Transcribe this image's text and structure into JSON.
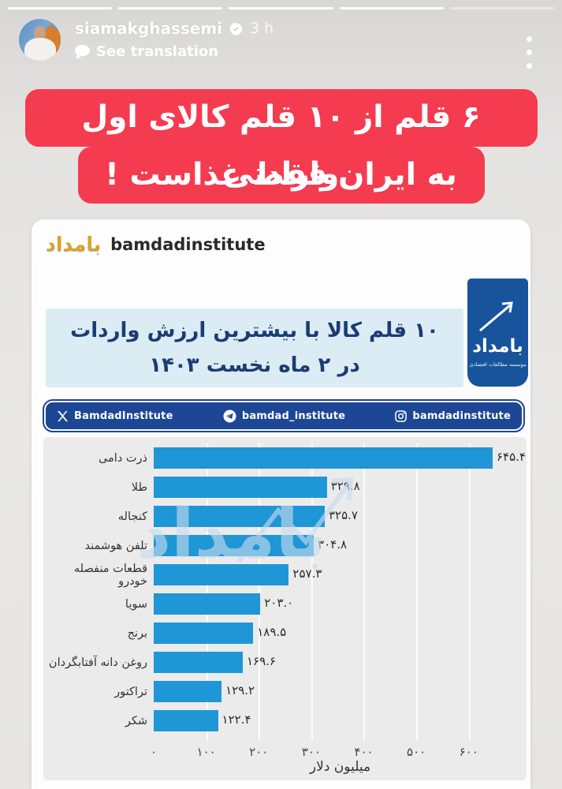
{
  "story": {
    "progress_segments": 5,
    "progress_filled": 4,
    "username": "siamakghassemi",
    "timestamp": "3 h",
    "see_translation_label": "See translation"
  },
  "banner": {
    "line1": "۶ قلم از ۱۰ قلم کالای اول وارادتی",
    "line2": "به ایران فقط غذاست !"
  },
  "card": {
    "logo_text": "بامداد",
    "account_name": "bamdadinstitute",
    "title_line1": "۱۰ قلم کالا با بیشترین ارزش واردات",
    "title_line2": "در ۲ ماه نخست ۱۴۰۳",
    "logo_block": {
      "text": "بامداد",
      "caption": "موسسه مطالعات اقتصادی"
    },
    "social": {
      "twitter": "BamdadInstitute",
      "telegram": "bamdad_institute",
      "instagram": "bamdadinstitute"
    },
    "watermark_text": "بامداد"
  },
  "chart_data": {
    "type": "bar",
    "orientation": "horizontal",
    "title": "۱۰ قلم کالا با بیشترین ارزش واردات در ۲ ماه نخست ۱۴۰۳",
    "categories": [
      "ذرت دامی",
      "طلا",
      "کنجاله",
      "تلفن هوشمند",
      "قطعات منفصله خودرو",
      "سویا",
      "برنج",
      "روغن دانه آفتابگردان",
      "تراکتور",
      "شکر"
    ],
    "values": [
      645.4,
      329.8,
      325.7,
      304.8,
      257.3,
      203.0,
      189.5,
      169.6,
      129.2,
      122.4
    ],
    "value_labels": [
      "۶۴۵.۴",
      "۳۲۹.۸",
      "۳۲۵.۷",
      "۳۰۴.۸",
      "۲۵۷.۳",
      "۲۰۳.۰",
      "۱۸۹.۵",
      "۱۶۹.۶",
      "۱۲۹.۲",
      "۱۲۲.۴"
    ],
    "xlabel": "میلیون دلار",
    "x_ticks": [
      "۰",
      "۱۰۰",
      "۲۰۰",
      "۳۰۰",
      "۴۰۰",
      "۵۰۰",
      "۶۰۰"
    ],
    "x_tick_values": [
      0,
      100,
      200,
      300,
      400,
      500,
      600
    ],
    "xlim": [
      0,
      710
    ],
    "grid": true,
    "legend": false,
    "bar_color": "#1f96d5"
  },
  "colors": {
    "banner_red": "#f43b50",
    "bar_blue": "#1f96d5",
    "social_navy": "#1d4694",
    "logo_block_blue": "#17549c",
    "title_box_bg": "#dcecf4",
    "title_text": "#1b3c74",
    "panel_bg": "#ebebeb",
    "logo_gold": "#dca326"
  }
}
